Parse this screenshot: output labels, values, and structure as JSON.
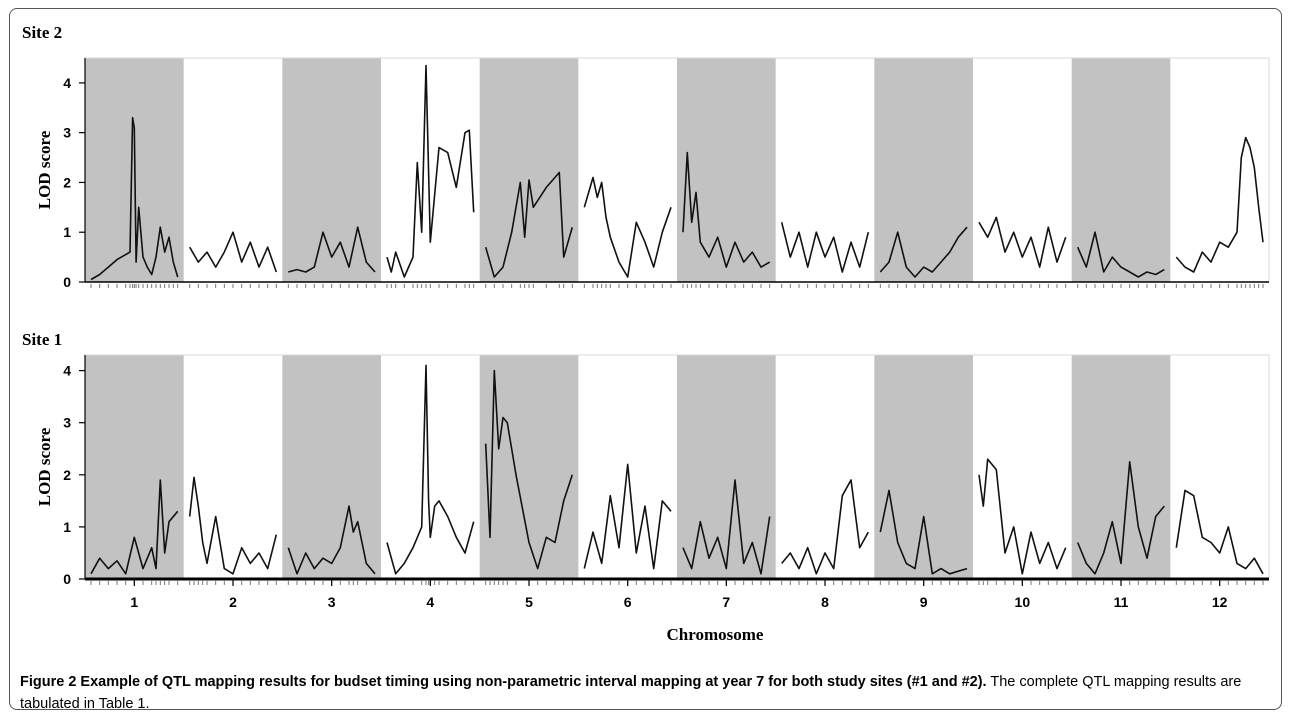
{
  "figure": {
    "caption_title": "Figure 2 Example of QTL mapping results for budset timing using non-parametric interval mapping at year 7 for both study sites (#1 and #2).",
    "caption_text": "The complete QTL mapping results are tabulated in Table 1."
  },
  "chart_data": [
    {
      "type": "line",
      "title": "Site 2",
      "ylabel": "LOD score",
      "xlabel": "",
      "ylim": [
        0,
        4.5
      ],
      "yticks": [
        0,
        1,
        2,
        3,
        4
      ],
      "chromosomes": [
        "1",
        "2",
        "3",
        "4",
        "5",
        "6",
        "7",
        "8",
        "9",
        "10",
        "11",
        "12"
      ],
      "shaded_chromosomes": [
        "1",
        "3",
        "5",
        "7",
        "9",
        "11"
      ],
      "grid": false,
      "series": [
        {
          "chromosome": "1",
          "x": [
            0,
            0.1,
            0.2,
            0.3,
            0.4,
            0.45,
            0.48,
            0.5,
            0.52,
            0.55,
            0.6,
            0.65,
            0.7,
            0.75,
            0.8,
            0.85,
            0.9,
            0.95,
            1
          ],
          "y": [
            0.05,
            0.15,
            0.3,
            0.45,
            0.55,
            0.6,
            3.3,
            3.1,
            0.4,
            1.5,
            0.5,
            0.3,
            0.15,
            0.5,
            1.1,
            0.6,
            0.9,
            0.4,
            0.1
          ]
        },
        {
          "chromosome": "2",
          "x": [
            0,
            0.1,
            0.2,
            0.3,
            0.4,
            0.5,
            0.6,
            0.7,
            0.8,
            0.9,
            1
          ],
          "y": [
            0.7,
            0.4,
            0.6,
            0.3,
            0.6,
            1.0,
            0.4,
            0.8,
            0.3,
            0.7,
            0.2
          ]
        },
        {
          "chromosome": "3",
          "x": [
            0,
            0.1,
            0.2,
            0.3,
            0.4,
            0.5,
            0.6,
            0.7,
            0.8,
            0.9,
            1
          ],
          "y": [
            0.2,
            0.25,
            0.2,
            0.3,
            1.0,
            0.5,
            0.8,
            0.3,
            1.1,
            0.4,
            0.2
          ]
        },
        {
          "chromosome": "4",
          "x": [
            0,
            0.05,
            0.1,
            0.2,
            0.3,
            0.35,
            0.4,
            0.45,
            0.5,
            0.6,
            0.7,
            0.8,
            0.9,
            0.95,
            1
          ],
          "y": [
            0.5,
            0.2,
            0.6,
            0.1,
            0.5,
            2.4,
            1.0,
            4.35,
            0.8,
            2.7,
            2.6,
            1.9,
            3.0,
            3.05,
            1.4
          ]
        },
        {
          "chromosome": "5",
          "x": [
            0,
            0.1,
            0.2,
            0.3,
            0.4,
            0.45,
            0.5,
            0.55,
            0.7,
            0.85,
            0.9,
            1
          ],
          "y": [
            0.7,
            0.1,
            0.3,
            1.0,
            2.0,
            0.9,
            2.05,
            1.5,
            1.9,
            2.2,
            0.5,
            1.1
          ]
        },
        {
          "chromosome": "6",
          "x": [
            0,
            0.1,
            0.15,
            0.2,
            0.25,
            0.3,
            0.4,
            0.5,
            0.6,
            0.7,
            0.8,
            0.9,
            1
          ],
          "y": [
            1.5,
            2.1,
            1.7,
            2.0,
            1.3,
            0.9,
            0.4,
            0.1,
            1.2,
            0.8,
            0.3,
            1.0,
            1.5
          ]
        },
        {
          "chromosome": "7",
          "x": [
            0,
            0.05,
            0.1,
            0.15,
            0.2,
            0.3,
            0.4,
            0.5,
            0.6,
            0.7,
            0.8,
            0.9,
            1
          ],
          "y": [
            1.0,
            2.6,
            1.2,
            1.8,
            0.8,
            0.5,
            0.9,
            0.3,
            0.8,
            0.4,
            0.6,
            0.3,
            0.4
          ]
        },
        {
          "chromosome": "8",
          "x": [
            0,
            0.1,
            0.2,
            0.3,
            0.4,
            0.5,
            0.6,
            0.7,
            0.8,
            0.9,
            1
          ],
          "y": [
            1.2,
            0.5,
            1.0,
            0.3,
            1.0,
            0.5,
            0.9,
            0.2,
            0.8,
            0.3,
            1.0
          ]
        },
        {
          "chromosome": "9",
          "x": [
            0,
            0.1,
            0.2,
            0.3,
            0.4,
            0.5,
            0.6,
            0.7,
            0.8,
            0.9,
            1
          ],
          "y": [
            0.2,
            0.4,
            1.0,
            0.3,
            0.1,
            0.3,
            0.2,
            0.4,
            0.6,
            0.9,
            1.1
          ]
        },
        {
          "chromosome": "10",
          "x": [
            0,
            0.1,
            0.2,
            0.3,
            0.4,
            0.5,
            0.6,
            0.7,
            0.8,
            0.9,
            1
          ],
          "y": [
            1.2,
            0.9,
            1.3,
            0.6,
            1.0,
            0.5,
            0.9,
            0.3,
            1.1,
            0.4,
            0.9
          ]
        },
        {
          "chromosome": "11",
          "x": [
            0,
            0.1,
            0.2,
            0.3,
            0.4,
            0.5,
            0.6,
            0.7,
            0.8,
            0.9,
            1
          ],
          "y": [
            0.7,
            0.3,
            1.0,
            0.2,
            0.5,
            0.3,
            0.2,
            0.1,
            0.2,
            0.15,
            0.25
          ]
        },
        {
          "chromosome": "12",
          "x": [
            0,
            0.1,
            0.2,
            0.3,
            0.4,
            0.5,
            0.6,
            0.7,
            0.75,
            0.8,
            0.85,
            0.9,
            0.95,
            1
          ],
          "y": [
            0.5,
            0.3,
            0.2,
            0.6,
            0.4,
            0.8,
            0.7,
            1.0,
            2.5,
            2.9,
            2.7,
            2.3,
            1.5,
            0.8
          ]
        }
      ]
    },
    {
      "type": "line",
      "title": "Site 1",
      "ylabel": "LOD score",
      "xlabel": "Chromosome",
      "ylim": [
        0,
        4.3
      ],
      "yticks": [
        0,
        1,
        2,
        3,
        4
      ],
      "chromosomes": [
        "1",
        "2",
        "3",
        "4",
        "5",
        "6",
        "7",
        "8",
        "9",
        "10",
        "11",
        "12"
      ],
      "shaded_chromosomes": [
        "1",
        "3",
        "5",
        "7",
        "9",
        "11"
      ],
      "grid": false,
      "series": [
        {
          "chromosome": "1",
          "x": [
            0,
            0.1,
            0.2,
            0.3,
            0.4,
            0.5,
            0.6,
            0.7,
            0.75,
            0.8,
            0.85,
            0.9,
            1
          ],
          "y": [
            0.1,
            0.4,
            0.2,
            0.35,
            0.1,
            0.8,
            0.2,
            0.6,
            0.2,
            1.9,
            0.5,
            1.1,
            1.3
          ]
        },
        {
          "chromosome": "2",
          "x": [
            0,
            0.05,
            0.1,
            0.15,
            0.2,
            0.3,
            0.4,
            0.5,
            0.6,
            0.7,
            0.8,
            0.9,
            1
          ],
          "y": [
            1.2,
            1.95,
            1.4,
            0.7,
            0.3,
            1.2,
            0.2,
            0.1,
            0.6,
            0.3,
            0.5,
            0.2,
            0.85
          ]
        },
        {
          "chromosome": "3",
          "x": [
            0,
            0.1,
            0.2,
            0.3,
            0.4,
            0.5,
            0.6,
            0.7,
            0.75,
            0.8,
            0.9,
            1
          ],
          "y": [
            0.6,
            0.1,
            0.5,
            0.2,
            0.4,
            0.3,
            0.6,
            1.4,
            0.9,
            1.1,
            0.3,
            0.1
          ]
        },
        {
          "chromosome": "4",
          "x": [
            0,
            0.1,
            0.2,
            0.3,
            0.4,
            0.45,
            0.48,
            0.5,
            0.55,
            0.6,
            0.7,
            0.8,
            0.9,
            1
          ],
          "y": [
            0.7,
            0.1,
            0.3,
            0.6,
            1.0,
            4.1,
            1.5,
            0.8,
            1.4,
            1.5,
            1.2,
            0.8,
            0.5,
            1.1
          ]
        },
        {
          "chromosome": "5",
          "x": [
            0,
            0.05,
            0.1,
            0.15,
            0.2,
            0.25,
            0.35,
            0.5,
            0.6,
            0.7,
            0.8,
            0.9,
            1
          ],
          "y": [
            2.6,
            0.8,
            4.0,
            2.5,
            3.1,
            3.0,
            2.0,
            0.7,
            0.2,
            0.8,
            0.7,
            1.5,
            2.0
          ]
        },
        {
          "chromosome": "6",
          "x": [
            0,
            0.1,
            0.2,
            0.3,
            0.4,
            0.5,
            0.6,
            0.7,
            0.8,
            0.9,
            1
          ],
          "y": [
            0.2,
            0.9,
            0.3,
            1.6,
            0.6,
            2.2,
            0.5,
            1.4,
            0.2,
            1.5,
            1.3
          ]
        },
        {
          "chromosome": "7",
          "x": [
            0,
            0.1,
            0.2,
            0.3,
            0.4,
            0.5,
            0.6,
            0.7,
            0.8,
            0.9,
            1
          ],
          "y": [
            0.6,
            0.2,
            1.1,
            0.4,
            0.8,
            0.2,
            1.9,
            0.3,
            0.7,
            0.1,
            1.2
          ]
        },
        {
          "chromosome": "8",
          "x": [
            0,
            0.1,
            0.2,
            0.3,
            0.4,
            0.5,
            0.6,
            0.7,
            0.8,
            0.9,
            1
          ],
          "y": [
            0.3,
            0.5,
            0.2,
            0.6,
            0.1,
            0.5,
            0.2,
            1.6,
            1.9,
            0.6,
            0.9
          ]
        },
        {
          "chromosome": "9",
          "x": [
            0,
            0.1,
            0.2,
            0.3,
            0.4,
            0.5,
            0.6,
            0.7,
            0.8,
            0.9,
            1
          ],
          "y": [
            0.9,
            1.7,
            0.7,
            0.3,
            0.2,
            1.2,
            0.1,
            0.2,
            0.1,
            0.15,
            0.2
          ]
        },
        {
          "chromosome": "10",
          "x": [
            0,
            0.05,
            0.1,
            0.2,
            0.3,
            0.4,
            0.5,
            0.6,
            0.7,
            0.8,
            0.9,
            1
          ],
          "y": [
            2.0,
            1.4,
            2.3,
            2.1,
            0.5,
            1.0,
            0.1,
            0.9,
            0.3,
            0.7,
            0.2,
            0.6
          ]
        },
        {
          "chromosome": "11",
          "x": [
            0,
            0.1,
            0.2,
            0.3,
            0.4,
            0.5,
            0.6,
            0.7,
            0.8,
            0.9,
            1
          ],
          "y": [
            0.7,
            0.3,
            0.1,
            0.5,
            1.1,
            0.3,
            2.25,
            1.0,
            0.4,
            1.2,
            1.4
          ]
        },
        {
          "chromosome": "12",
          "x": [
            0,
            0.1,
            0.2,
            0.3,
            0.4,
            0.5,
            0.6,
            0.7,
            0.8,
            0.9,
            1
          ],
          "y": [
            0.6,
            1.7,
            1.6,
            0.8,
            0.7,
            0.5,
            1.0,
            0.3,
            0.2,
            0.4,
            0.1
          ]
        }
      ]
    }
  ]
}
